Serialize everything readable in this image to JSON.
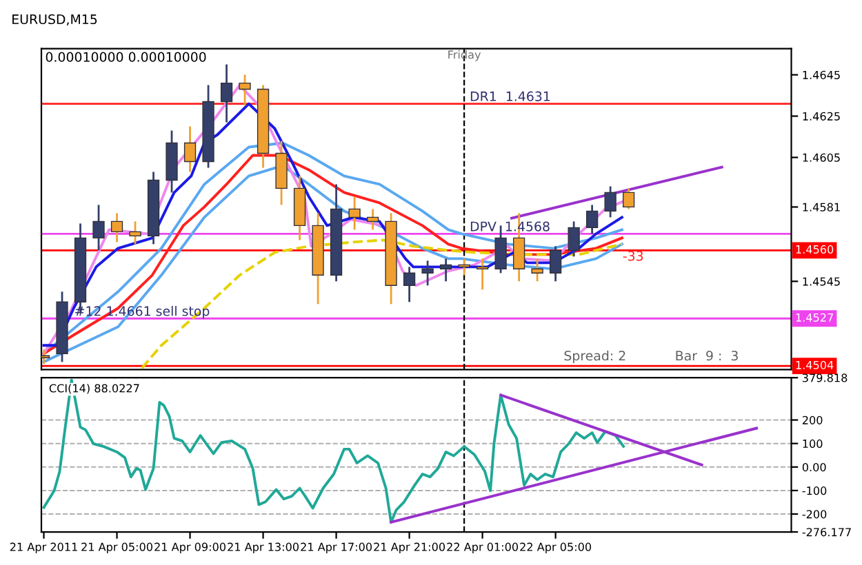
{
  "chart_data": [
    {
      "type": "candlestick",
      "title": "EURUSD,M15",
      "x": [
        "2011-04-21T01:00",
        "2011-04-21T02:00",
        "2011-04-21T03:00",
        "2011-04-21T04:00",
        "2011-04-21T05:00",
        "2011-04-21T06:00",
        "2011-04-21T07:00",
        "2011-04-21T08:00",
        "2011-04-21T09:00",
        "2011-04-21T10:00",
        "2011-04-21T11:00",
        "2011-04-21T12:00",
        "2011-04-21T13:00",
        "2011-04-21T14:00",
        "2011-04-21T15:00",
        "2011-04-21T16:00",
        "2011-04-21T17:00",
        "2011-04-21T18:00",
        "2011-04-21T19:00",
        "2011-04-21T20:00",
        "2011-04-21T21:00",
        "2011-04-21T22:00",
        "2011-04-21T23:00",
        "2011-04-22T00:00",
        "2011-04-22T01:00",
        "2011-04-22T02:00",
        "2011-04-22T03:00",
        "2011-04-22T04:00",
        "2011-04-22T05:00",
        "2011-04-22T06:00",
        "2011-04-22T07:00",
        "2011-04-22T08:00",
        "2011-04-22T09:00"
      ],
      "ohlc": [
        [
          1.4509,
          1.4512,
          1.4505,
          1.4508
        ],
        [
          1.451,
          1.454,
          1.4506,
          1.4535
        ],
        [
          1.4535,
          1.4573,
          1.453,
          1.4566
        ],
        [
          1.4566,
          1.4582,
          1.456,
          1.4574
        ],
        [
          1.4574,
          1.4578,
          1.4564,
          1.4569
        ],
        [
          1.4569,
          1.4574,
          1.4563,
          1.4567
        ],
        [
          1.4567,
          1.4598,
          1.4563,
          1.4594
        ],
        [
          1.4594,
          1.4618,
          1.4588,
          1.4612
        ],
        [
          1.4612,
          1.462,
          1.4598,
          1.4603
        ],
        [
          1.4603,
          1.464,
          1.46,
          1.4632
        ],
        [
          1.4632,
          1.465,
          1.4622,
          1.4641
        ],
        [
          1.4641,
          1.4645,
          1.463,
          1.4638
        ],
        [
          1.4638,
          1.464,
          1.46,
          1.4607
        ],
        [
          1.4607,
          1.4613,
          1.4582,
          1.459
        ],
        [
          1.459,
          1.4596,
          1.4565,
          1.4572
        ],
        [
          1.4572,
          1.4578,
          1.4534,
          1.4548
        ],
        [
          1.4548,
          1.4592,
          1.4545,
          1.458
        ],
        [
          1.458,
          1.4586,
          1.457,
          1.4576
        ],
        [
          1.4576,
          1.458,
          1.457,
          1.4574
        ],
        [
          1.4574,
          1.4578,
          1.4534,
          1.4543
        ],
        [
          1.4543,
          1.4552,
          1.4535,
          1.4549
        ],
        [
          1.4549,
          1.4555,
          1.4543,
          1.4551
        ],
        [
          1.4551,
          1.4556,
          1.4545,
          1.4553
        ],
        [
          1.4553,
          1.4556,
          1.4548,
          1.4552
        ],
        [
          1.4552,
          1.4556,
          1.4541,
          1.4551
        ],
        [
          1.4551,
          1.4572,
          1.4549,
          1.4566
        ],
        [
          1.4566,
          1.4578,
          1.4545,
          1.4551
        ],
        [
          1.4551,
          1.4556,
          1.4545,
          1.4549
        ],
        [
          1.4549,
          1.4562,
          1.4545,
          1.456
        ],
        [
          1.456,
          1.4574,
          1.4557,
          1.4571
        ],
        [
          1.4571,
          1.4582,
          1.4568,
          1.4579
        ],
        [
          1.4579,
          1.4591,
          1.4576,
          1.4588
        ],
        [
          1.4588,
          1.459,
          1.458,
          1.4581
        ]
      ],
      "colors": [
        "#f0a030",
        "#34406a",
        "#34406a",
        "#34406a",
        "#f0a030",
        "#f0a030",
        "#34406a",
        "#34406a",
        "#f0a030",
        "#34406a",
        "#34406a",
        "#f0a030",
        "#f0a030",
        "#f0a030",
        "#f0a030",
        "#f0a030",
        "#34406a",
        "#f0a030",
        "#f0a030",
        "#f0a030",
        "#34406a",
        "#34406a",
        "#34406a",
        "#f0a030",
        "#f0a030",
        "#34406a",
        "#f0a030",
        "#f0a030",
        "#34406a",
        "#34406a",
        "#34406a",
        "#34406a",
        "#f0a030"
      ],
      "series": [
        {
          "type": "line",
          "color": "#5aa8f0",
          "x": [
            "2011-04-21T01:00",
            "2011-04-21T05:04",
            "2011-04-21T07:26",
            "2011-04-21T09:47",
            "2011-04-21T12:13",
            "2011-04-21T14:04",
            "2011-04-21T15:30",
            "2011-04-21T17:26",
            "2011-04-21T19:22",
            "2011-04-21T21:43",
            "2011-04-21T23:08",
            "2011-04-21T23:52",
            "2011-04-22T02:24",
            "2011-04-22T04:52",
            "2011-04-22T07:13",
            "2011-04-22T08:38"
          ],
          "values": [
            1.451,
            1.454,
            1.4561,
            1.4592,
            1.461,
            1.4612,
            1.4606,
            1.4596,
            1.4592,
            1.4579,
            1.457,
            1.4568,
            1.4563,
            1.4561,
            1.4566,
            1.457
          ]
        },
        {
          "type": "line",
          "color": "#5aa8f0",
          "x": [
            "2011-04-21T01:00",
            "2011-04-21T05:04",
            "2011-04-21T07:26",
            "2011-04-21T09:47",
            "2011-04-21T12:13",
            "2011-04-21T14:04",
            "2011-04-21T15:30",
            "2011-04-21T17:26",
            "2011-04-21T19:22",
            "2011-04-21T21:43",
            "2011-04-21T23:08",
            "2011-04-21T23:52",
            "2011-04-22T02:24",
            "2011-04-22T04:52",
            "2011-04-22T07:13",
            "2011-04-22T08:38"
          ],
          "values": [
            1.4506,
            1.4523,
            1.4548,
            1.4576,
            1.4596,
            1.4601,
            1.4592,
            1.4579,
            1.4572,
            1.4561,
            1.4556,
            1.4556,
            1.4553,
            1.4551,
            1.4556,
            1.4563
          ]
        },
        {
          "type": "line",
          "color": "#ff2020",
          "x": [
            "2011-04-21T01:00",
            "2011-04-21T02:38",
            "2011-04-21T05:04",
            "2011-04-21T06:56",
            "2011-04-21T08:38",
            "2011-04-21T09:47",
            "2011-04-21T11:00",
            "2011-04-21T12:26",
            "2011-04-21T13:52",
            "2011-04-21T15:30",
            "2011-04-21T17:26",
            "2011-04-21T19:22",
            "2011-04-21T21:43",
            "2011-04-21T23:08",
            "2011-04-21T23:52",
            "2011-04-22T02:24",
            "2011-04-22T04:52",
            "2011-04-22T07:13",
            "2011-04-22T08:38"
          ],
          "values": [
            1.451,
            1.4519,
            1.4532,
            1.4548,
            1.4572,
            1.4581,
            1.4592,
            1.4606,
            1.4606,
            1.4599,
            1.4588,
            1.4583,
            1.4572,
            1.4563,
            1.4561,
            1.4558,
            1.4558,
            1.4561,
            1.4566
          ]
        },
        {
          "type": "line",
          "color": "#e6d200",
          "line_style": "dashed",
          "x": [
            "2011-04-21T06:22",
            "2011-04-21T07:26",
            "2011-04-21T09:47",
            "2011-04-21T11:43",
            "2011-04-21T13:38",
            "2011-04-21T15:30",
            "2011-04-21T17:56",
            "2011-04-21T19:34",
            "2011-04-21T21:13",
            "2011-04-21T23:08",
            "2011-04-22T00:34",
            "2011-04-22T03:26",
            "2011-04-22T06:17",
            "2011-04-22T08:38"
          ],
          "values": [
            1.4503,
            1.4514,
            1.4532,
            1.4548,
            1.4559,
            1.4562,
            1.4564,
            1.4565,
            1.4562,
            1.456,
            1.4559,
            1.4558,
            1.4558,
            1.4563
          ]
        },
        {
          "type": "line",
          "color": "#ee88ee",
          "x": [
            "2011-04-21T01:00",
            "2011-04-21T02:26",
            "2011-04-21T04:34",
            "2011-04-21T06:43",
            "2011-04-21T08:08",
            "2011-04-21T10:17",
            "2011-04-21T11:43",
            "2011-04-21T12:47",
            "2011-04-21T13:52",
            "2011-04-21T15:17",
            "2011-04-21T15:38",
            "2011-04-21T16:43",
            "2011-04-21T17:47",
            "2011-04-21T19:34",
            "2011-04-21T20:38",
            "2011-04-21T21:22",
            "2011-04-21T23:08",
            "2011-04-22T00:34",
            "2011-04-22T02:24",
            "2011-04-22T03:04",
            "2011-04-22T04:52",
            "2011-04-22T06:17",
            "2011-04-22T07:43",
            "2011-04-22T08:47"
          ],
          "values": [
            1.451,
            1.453,
            1.457,
            1.4568,
            1.46,
            1.4623,
            1.464,
            1.463,
            1.461,
            1.4585,
            1.4562,
            1.4568,
            1.4575,
            1.4572,
            1.455,
            1.4543,
            1.455,
            1.4553,
            1.4562,
            1.4556,
            1.4555,
            1.4568,
            1.458,
            1.4584
          ]
        },
        {
          "type": "line",
          "color": "#1a1ae6",
          "x": [
            "2011-04-21T01:00",
            "2011-04-21T01:43",
            "2011-04-21T02:38",
            "2011-04-21T03:52",
            "2011-04-21T05:04",
            "2011-04-21T06:56",
            "2011-04-21T08:08",
            "2011-04-21T09:04",
            "2011-04-21T09:47",
            "2011-04-21T10:30",
            "2011-04-21T12:13",
            "2011-04-21T13:38",
            "2011-04-21T14:34",
            "2011-04-21T15:30",
            "2011-04-21T16:30",
            "2011-04-21T17:56",
            "2011-04-21T19:22",
            "2011-04-21T20:47",
            "2011-04-21T21:13",
            "2011-04-21T22:56",
            "2011-04-22T01:17",
            "2011-04-22T02:43",
            "2011-04-22T03:26",
            "2011-04-22T04:52",
            "2011-04-22T06:17",
            "2011-04-22T07:13",
            "2011-04-22T08:38"
          ],
          "values": [
            1.4514,
            1.4514,
            1.4532,
            1.4552,
            1.4561,
            1.4566,
            1.4588,
            1.4596,
            1.4612,
            1.4616,
            1.4631,
            1.4619,
            1.4603,
            1.4586,
            1.4572,
            1.4576,
            1.4574,
            1.4556,
            1.4552,
            1.4552,
            1.4552,
            1.4559,
            1.4554,
            1.4554,
            1.4561,
            1.4568,
            1.4576
          ]
        },
        {
          "type": "line",
          "color": "#9932cc",
          "x": [
            "2011-04-22T02:36",
            "2011-04-22T14:06"
          ],
          "values": [
            1.45756,
            1.46003
          ]
        }
      ],
      "xlim": [
        "2011-04-21T00:52",
        "2011-04-22T17:54"
      ],
      "ylim": [
        1.45023,
        1.46577
      ],
      "yticks": [
        1.4645,
        1.4625,
        1.4605,
        1.4581,
        1.4545
      ],
      "tick_labels": "y",
      "ref_lines": [
        {
          "axis": "y",
          "value": 1.4631,
          "color": "#ff2020",
          "line_style": "solid"
        },
        {
          "axis": "y",
          "value": 1.4568,
          "color": "#ee44ee",
          "line_style": "solid"
        },
        {
          "axis": "y",
          "value": 1.456,
          "label": "1.4560",
          "color": "#ff0000",
          "line_style": "solid"
        },
        {
          "axis": "y",
          "value": 1.4527,
          "label": "1.4527",
          "color": "#ee44ee",
          "line_style": "solid"
        },
        {
          "axis": "y",
          "value": 1.4504,
          "label": "1.4504",
          "color": "#ff0000",
          "line_style": "solid"
        },
        {
          "axis": "x",
          "value": "2011-04-22T00:00",
          "label": "Friday",
          "color": "#000000",
          "line_style": "dashed"
        }
      ],
      "annotations": [
        "0.00010000 0.00010000",
        {
          "text": "DR1  1.4631",
          "x": "2011-04-22T00:18",
          "y": 1.4631
        },
        {
          "text": "DPV  1.4568",
          "x": "2011-04-22T00:18",
          "y": 1.4568
        },
        "-33",
        {
          "text": "#12 1.4661 sell stop",
          "x": "2011-04-21T02:40",
          "y": 1.4527
        },
        "Spread: 2",
        "Bar  9 :  3"
      ],
      "grid": false,
      "legend": false
    },
    {
      "type": "line",
      "title": "CCI(14) 88.0227",
      "series": [
        {
          "color": "#20a898",
          "x": [
            "2011-04-21T01:00",
            "2011-04-21T01:34",
            "2011-04-21T01:52",
            "2011-04-21T02:08",
            "2011-04-21T02:31",
            "2011-04-21T03:00",
            "2011-04-21T03:17",
            "2011-04-21T03:43",
            "2011-04-21T04:17",
            "2011-04-21T05:00",
            "2011-04-21T05:26",
            "2011-04-21T05:46",
            "2011-04-21T06:04",
            "2011-04-21T06:17",
            "2011-04-21T06:34",
            "2011-04-21T07:00",
            "2011-04-21T07:20",
            "2011-04-21T07:34",
            "2011-04-21T07:52",
            "2011-04-21T08:08",
            "2011-04-21T08:34",
            "2011-04-21T09:00",
            "2011-04-21T09:34",
            "2011-04-21T10:17",
            "2011-04-21T10:43",
            "2011-04-21T11:17",
            "2011-04-21T12:00",
            "2011-04-21T12:26",
            "2011-04-21T12:46",
            "2011-04-21T13:08",
            "2011-04-21T13:43",
            "2011-04-21T14:08",
            "2011-04-21T14:34",
            "2011-04-21T15:00",
            "2011-04-21T15:18",
            "2011-04-21T15:43",
            "2011-04-21T16:17",
            "2011-04-21T16:52",
            "2011-04-21T17:26",
            "2011-04-21T17:43",
            "2011-04-21T18:08",
            "2011-04-21T18:43",
            "2011-04-21T19:17",
            "2011-04-21T19:43",
            "2011-04-21T20:00",
            "2011-04-21T20:17",
            "2011-04-21T20:43",
            "2011-04-21T21:17",
            "2011-04-21T21:43",
            "2011-04-21T22:08",
            "2011-04-21T22:34",
            "2011-04-21T23:00",
            "2011-04-21T23:26",
            "2011-04-22T00:00",
            "2011-04-22T00:34",
            "2011-04-22T01:08",
            "2011-04-22T01:26",
            "2011-04-22T01:38",
            "2011-04-22T02:00",
            "2011-04-22T02:26",
            "2011-04-22T02:52",
            "2011-04-22T03:17",
            "2011-04-22T03:38",
            "2011-04-22T04:00",
            "2011-04-22T04:26",
            "2011-04-22T04:52",
            "2011-04-22T05:17",
            "2011-04-22T05:43",
            "2011-04-22T06:08",
            "2011-04-22T06:34",
            "2011-04-22T07:00",
            "2011-04-22T07:17",
            "2011-04-22T07:43",
            "2011-04-22T08:17",
            "2011-04-22T08:43"
          ],
          "values": [
            -172,
            -101,
            -19,
            146,
            370,
            169,
            158,
            99,
            87,
            64,
            40,
            -42,
            -6,
            -13,
            -96,
            -6,
            275,
            262,
            216,
            122,
            111,
            64,
            134,
            57,
            104,
            111,
            76,
            -6,
            -160,
            -148,
            -96,
            -136,
            -124,
            -90,
            -124,
            -175,
            -90,
            -30,
            76,
            76,
            17,
            48,
            17,
            -90,
            -235,
            -183,
            -148,
            -78,
            -30,
            -42,
            -6,
            64,
            48,
            87,
            52,
            -19,
            -101,
            99,
            306,
            181,
            122,
            -78,
            -30,
            -54,
            -30,
            -42,
            64,
            99,
            146,
            122,
            146,
            104,
            151,
            134,
            88
          ]
        },
        {
          "color": "#9932cc",
          "x": [
            "2011-04-21T20:00",
            "2011-04-22T16:00"
          ],
          "values": [
            -235,
            165
          ]
        },
        {
          "color": "#9932cc",
          "x": [
            "2011-04-22T02:00",
            "2011-04-22T13:00"
          ],
          "values": [
            306,
            9
          ]
        }
      ],
      "xlim": [
        "2011-04-21T00:52",
        "2011-04-22T17:54"
      ],
      "ylim": [
        -276.177,
        379.818
      ],
      "yticks": [
        {
          "value": 379.818,
          "label": "379.818"
        },
        200,
        100,
        {
          "value": 0,
          "label": "0.00"
        },
        -100,
        -200,
        {
          "value": -276.177,
          "label": "-276.177"
        }
      ],
      "xticks": [
        {
          "value": "2011-04-21T01:00",
          "label": "21 Apr 2011"
        },
        {
          "value": "2011-04-21T05:00",
          "label": "21 Apr 05:00"
        },
        {
          "value": "2011-04-21T09:00",
          "label": "21 Apr 09:00"
        },
        {
          "value": "2011-04-21T13:00",
          "label": "21 Apr 13:00"
        },
        {
          "value": "2011-04-21T17:00",
          "label": "21 Apr 17:00"
        },
        {
          "value": "2011-04-21T21:00",
          "label": "21 Apr 21:00"
        },
        {
          "value": "2011-04-22T01:00",
          "label": "22 Apr 01:00"
        },
        {
          "value": "2011-04-22T05:00",
          "label": "22 Apr 05:00"
        }
      ],
      "ref_lines": [
        {
          "axis": "x",
          "value": "2011-04-22T00:00",
          "color": "#000000",
          "line_style": "dashed"
        }
      ],
      "grid": "y",
      "legend": false
    }
  ]
}
